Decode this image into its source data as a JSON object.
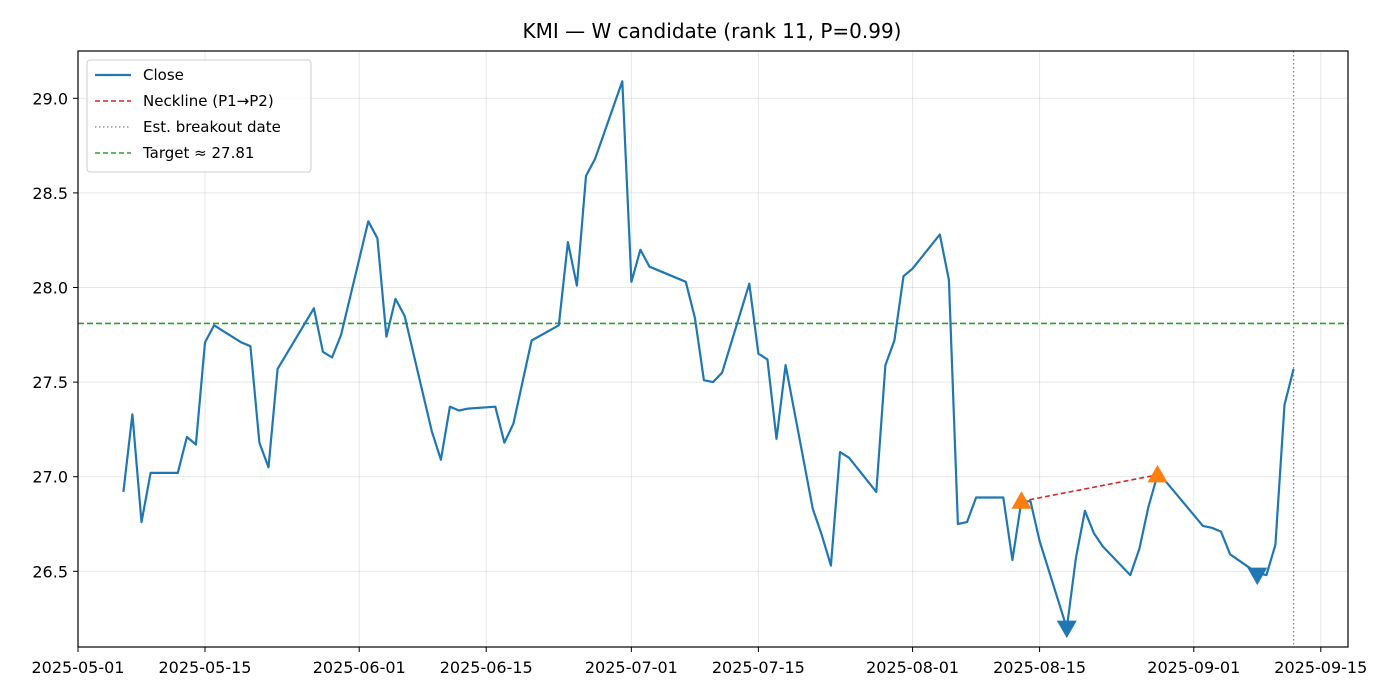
{
  "chart_data": {
    "type": "line",
    "title": "KMI — W candidate (rank 11, P=0.99)",
    "xlabel": "",
    "ylabel": "",
    "xlim": [
      "2025-05-01",
      "2025-09-18"
    ],
    "ylim": [
      26.1,
      29.25
    ],
    "grid": true,
    "legend_position": "top-left",
    "x_ticks": [
      "2025-05-01",
      "2025-05-15",
      "2025-06-01",
      "2025-06-15",
      "2025-07-01",
      "2025-07-15",
      "2025-08-01",
      "2025-08-15",
      "2025-09-01",
      "2025-09-15"
    ],
    "y_ticks": [
      "26.5",
      "27.0",
      "27.5",
      "28.0",
      "28.5",
      "29.0"
    ],
    "series": [
      {
        "name": "Close",
        "color": "#1f77b4",
        "x": [
          "2025-05-06",
          "2025-05-07",
          "2025-05-08",
          "2025-05-09",
          "2025-05-12",
          "2025-05-13",
          "2025-05-14",
          "2025-05-15",
          "2025-05-16",
          "2025-05-19",
          "2025-05-20",
          "2025-05-21",
          "2025-05-22",
          "2025-05-23",
          "2025-05-27",
          "2025-05-28",
          "2025-05-29",
          "2025-05-30",
          "2025-06-02",
          "2025-06-03",
          "2025-06-04",
          "2025-06-05",
          "2025-06-06",
          "2025-06-09",
          "2025-06-10",
          "2025-06-11",
          "2025-06-12",
          "2025-06-13",
          "2025-06-16",
          "2025-06-17",
          "2025-06-18",
          "2025-06-20",
          "2025-06-23",
          "2025-06-24",
          "2025-06-25",
          "2025-06-26",
          "2025-06-27",
          "2025-06-30",
          "2025-07-01",
          "2025-07-02",
          "2025-07-03",
          "2025-07-07",
          "2025-07-08",
          "2025-07-09",
          "2025-07-10",
          "2025-07-11",
          "2025-07-14",
          "2025-07-15",
          "2025-07-16",
          "2025-07-17",
          "2025-07-18",
          "2025-07-21",
          "2025-07-22",
          "2025-07-23",
          "2025-07-24",
          "2025-07-25",
          "2025-07-28",
          "2025-07-29",
          "2025-07-30",
          "2025-07-31",
          "2025-08-01",
          "2025-08-04",
          "2025-08-05",
          "2025-08-06",
          "2025-08-07",
          "2025-08-08",
          "2025-08-11",
          "2025-08-12",
          "2025-08-13",
          "2025-08-14",
          "2025-08-15",
          "2025-08-18",
          "2025-08-19",
          "2025-08-20",
          "2025-08-21",
          "2025-08-22",
          "2025-08-25",
          "2025-08-26",
          "2025-08-27",
          "2025-08-28",
          "2025-08-29",
          "2025-09-02",
          "2025-09-03",
          "2025-09-04",
          "2025-09-05",
          "2025-09-08",
          "2025-09-09",
          "2025-09-10",
          "2025-09-11",
          "2025-09-12"
        ],
        "values": [
          26.92,
          27.33,
          26.76,
          27.02,
          27.02,
          27.21,
          27.17,
          27.71,
          27.8,
          27.71,
          27.69,
          27.18,
          27.05,
          27.57,
          27.89,
          27.66,
          27.63,
          27.75,
          28.35,
          28.26,
          27.74,
          27.94,
          27.85,
          27.24,
          27.09,
          27.37,
          27.35,
          27.36,
          27.37,
          27.18,
          27.28,
          27.72,
          27.8,
          28.24,
          28.01,
          28.59,
          28.68,
          29.09,
          28.03,
          28.2,
          28.11,
          28.03,
          27.84,
          27.51,
          27.5,
          27.55,
          28.02,
          27.65,
          27.62,
          27.2,
          27.59,
          26.83,
          26.69,
          26.53,
          27.13,
          27.1,
          26.92,
          27.59,
          27.72,
          28.06,
          28.1,
          28.28,
          28.04,
          26.75,
          26.76,
          26.89,
          26.89,
          26.56,
          26.87,
          26.87,
          26.66,
          26.2,
          26.57,
          26.82,
          26.7,
          26.63,
          26.48,
          26.62,
          26.84,
          27.01,
          26.97,
          26.74,
          26.73,
          26.71,
          26.59,
          26.49,
          26.48,
          26.64,
          27.38,
          27.57
        ]
      },
      {
        "name": "Neckline (P1→P2)",
        "color": "#d62728",
        "x": [
          "2025-08-13",
          "2025-08-28"
        ],
        "values": [
          26.87,
          27.01
        ]
      },
      {
        "name": "Est. breakout date",
        "color": "#808080",
        "x": "2025-09-12"
      },
      {
        "name": "Target ≈ 27.81",
        "color": "#2ca02c",
        "value": 27.81
      }
    ],
    "peak_markers": {
      "color": "#ff7f0e",
      "x": [
        "2025-08-13",
        "2025-08-28"
      ],
      "values": [
        26.87,
        27.01
      ]
    },
    "trough_markers": {
      "color": "#1f77b4",
      "x": [
        "2025-08-18",
        "2025-09-08"
      ],
      "values": [
        26.2,
        26.48
      ]
    }
  }
}
